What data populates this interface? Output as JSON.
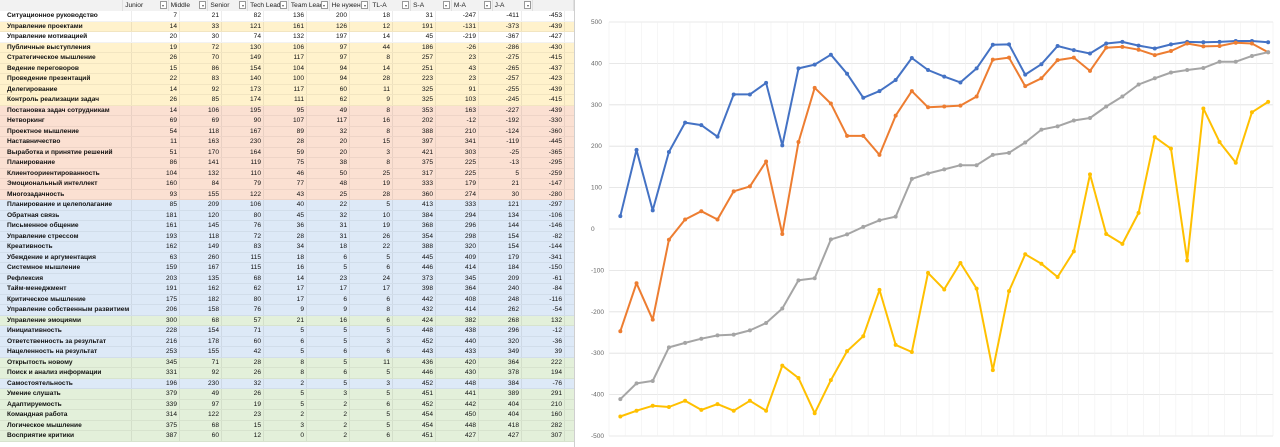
{
  "columns": [
    "",
    "Junior",
    "Middle",
    "Senior",
    "Tech Lead",
    "Team Lead",
    "Не нужен",
    "TL-A",
    "S-A",
    "M-A",
    "J-A",
    ""
  ],
  "colors": {
    "yellow": "#fff2cc",
    "orange": "#fbe0d2",
    "blue": "#dde9f7",
    "green": "#e3f0da",
    "white": "#ffffff"
  },
  "rows": [
    {
      "name": "Ситуационное руководство",
      "band": "white",
      "v": [
        "7",
        "21",
        "82",
        "136",
        "200",
        "18",
        "31",
        "-247",
        "-411",
        "-453"
      ]
    },
    {
      "name": "Управление проектами",
      "band": "yellow",
      "v": [
        "14",
        "33",
        "121",
        "161",
        "126",
        "12",
        "191",
        "-131",
        "-373",
        "-439"
      ]
    },
    {
      "name": "Управление мотивацией",
      "band": "white",
      "v": [
        "20",
        "30",
        "74",
        "132",
        "197",
        "14",
        "45",
        "-219",
        "-367",
        "-427"
      ]
    },
    {
      "name": "Публичные выступления",
      "band": "yellow",
      "v": [
        "19",
        "72",
        "130",
        "106",
        "97",
        "44",
        "186",
        "-26",
        "-286",
        "-430"
      ]
    },
    {
      "name": "Стратегическое мышление",
      "band": "yellow",
      "v": [
        "26",
        "70",
        "149",
        "117",
        "97",
        "8",
        "257",
        "23",
        "-275",
        "-415"
      ]
    },
    {
      "name": "Ведение переговоров",
      "band": "yellow",
      "v": [
        "15",
        "86",
        "154",
        "104",
        "94",
        "14",
        "251",
        "43",
        "-265",
        "-437"
      ]
    },
    {
      "name": "Проведение презентаций",
      "band": "yellow",
      "v": [
        "22",
        "83",
        "140",
        "100",
        "94",
        "28",
        "223",
        "23",
        "-257",
        "-423"
      ]
    },
    {
      "name": "Делегирование",
      "band": "yellow",
      "v": [
        "14",
        "92",
        "173",
        "117",
        "60",
        "11",
        "325",
        "91",
        "-255",
        "-439"
      ]
    },
    {
      "name": "Контроль реализации задач",
      "band": "yellow",
      "v": [
        "26",
        "85",
        "174",
        "111",
        "62",
        "9",
        "325",
        "103",
        "-245",
        "-415"
      ]
    },
    {
      "name": "Постановка задач сотрудникам",
      "band": "orange",
      "v": [
        "14",
        "106",
        "195",
        "95",
        "49",
        "8",
        "353",
        "163",
        "-227",
        "-439"
      ]
    },
    {
      "name": "Нетворкинг",
      "band": "orange",
      "v": [
        "69",
        "69",
        "90",
        "107",
        "117",
        "16",
        "202",
        "-12",
        "-192",
        "-330"
      ]
    },
    {
      "name": "Проектное мышление",
      "band": "orange",
      "v": [
        "54",
        "118",
        "167",
        "89",
        "32",
        "8",
        "388",
        "210",
        "-124",
        "-360"
      ]
    },
    {
      "name": "Наставничество",
      "band": "orange",
      "v": [
        "11",
        "163",
        "230",
        "28",
        "20",
        "15",
        "397",
        "341",
        "-119",
        "-445"
      ]
    },
    {
      "name": "Выработка и принятие решений",
      "band": "orange",
      "v": [
        "51",
        "170",
        "164",
        "59",
        "20",
        "3",
        "421",
        "303",
        "-25",
        "-365"
      ]
    },
    {
      "name": "Планирование",
      "band": "orange",
      "v": [
        "86",
        "141",
        "119",
        "75",
        "38",
        "8",
        "375",
        "225",
        "-13",
        "-295"
      ]
    },
    {
      "name": "Клиентоориентированность",
      "band": "orange",
      "v": [
        "104",
        "132",
        "110",
        "46",
        "50",
        "25",
        "317",
        "225",
        "5",
        "-259"
      ]
    },
    {
      "name": "Эмоциональный интеллект",
      "band": "orange",
      "v": [
        "160",
        "84",
        "79",
        "77",
        "48",
        "19",
        "333",
        "179",
        "21",
        "-147"
      ]
    },
    {
      "name": "Многозадачность",
      "band": "orange",
      "v": [
        "93",
        "155",
        "122",
        "43",
        "25",
        "28",
        "360",
        "274",
        "30",
        "-280"
      ]
    },
    {
      "name": "Планирование и целеполагание",
      "band": "blue",
      "v": [
        "85",
        "209",
        "106",
        "40",
        "22",
        "5",
        "413",
        "333",
        "121",
        "-297"
      ]
    },
    {
      "name": "Обратная связь",
      "band": "blue",
      "v": [
        "181",
        "120",
        "80",
        "45",
        "32",
        "10",
        "384",
        "294",
        "134",
        "-106"
      ]
    },
    {
      "name": "Письменное общение",
      "band": "blue",
      "v": [
        "161",
        "145",
        "76",
        "36",
        "31",
        "19",
        "368",
        "296",
        "144",
        "-146"
      ]
    },
    {
      "name": "Управление стрессом",
      "band": "blue",
      "v": [
        "193",
        "118",
        "72",
        "28",
        "31",
        "26",
        "354",
        "298",
        "154",
        "-82"
      ]
    },
    {
      "name": "Креативность",
      "band": "blue",
      "v": [
        "162",
        "149",
        "83",
        "34",
        "18",
        "22",
        "388",
        "320",
        "154",
        "-144"
      ]
    },
    {
      "name": "Убеждение и аргументация",
      "band": "blue",
      "v": [
        "63",
        "260",
        "115",
        "18",
        "6",
        "5",
        "445",
        "409",
        "179",
        "-341"
      ]
    },
    {
      "name": "Системное мышление",
      "band": "blue",
      "v": [
        "159",
        "167",
        "115",
        "16",
        "5",
        "6",
        "446",
        "414",
        "184",
        "-150"
      ]
    },
    {
      "name": "Рефлексия",
      "band": "blue",
      "v": [
        "203",
        "135",
        "68",
        "14",
        "23",
        "24",
        "373",
        "345",
        "209",
        "-61"
      ]
    },
    {
      "name": "Тайм-менеджмент",
      "band": "blue",
      "v": [
        "191",
        "162",
        "62",
        "17",
        "17",
        "17",
        "398",
        "364",
        "240",
        "-84"
      ]
    },
    {
      "name": "Критическое мышление",
      "band": "blue",
      "v": [
        "175",
        "182",
        "80",
        "17",
        "6",
        "6",
        "442",
        "408",
        "248",
        "-116"
      ]
    },
    {
      "name": "Управление собственным развитием",
      "band": "blue",
      "v": [
        "206",
        "158",
        "76",
        "9",
        "9",
        "8",
        "432",
        "414",
        "262",
        "-54"
      ]
    },
    {
      "name": "Управление эмоциями",
      "band": "green",
      "v": [
        "300",
        "68",
        "57",
        "21",
        "16",
        "6",
        "424",
        "382",
        "268",
        "132"
      ]
    },
    {
      "name": "Инициативность",
      "band": "blue",
      "v": [
        "228",
        "154",
        "71",
        "5",
        "5",
        "5",
        "448",
        "438",
        "296",
        "-12"
      ]
    },
    {
      "name": "Ответственность за результат",
      "band": "blue",
      "v": [
        "216",
        "178",
        "60",
        "6",
        "5",
        "3",
        "452",
        "440",
        "320",
        "-36"
      ]
    },
    {
      "name": "Нацеленность на результат",
      "band": "blue",
      "v": [
        "253",
        "155",
        "42",
        "5",
        "6",
        "6",
        "443",
        "433",
        "349",
        "39"
      ]
    },
    {
      "name": "Открытость новому",
      "band": "green",
      "v": [
        "345",
        "71",
        "28",
        "8",
        "5",
        "11",
        "436",
        "420",
        "364",
        "222"
      ]
    },
    {
      "name": "Поиск и анализ информации",
      "band": "green",
      "v": [
        "331",
        "92",
        "26",
        "8",
        "6",
        "5",
        "446",
        "430",
        "378",
        "194"
      ]
    },
    {
      "name": "Самостоятельность",
      "band": "blue",
      "v": [
        "196",
        "230",
        "32",
        "2",
        "5",
        "3",
        "452",
        "448",
        "384",
        "-76"
      ]
    },
    {
      "name": "Умение слушать",
      "band": "green",
      "v": [
        "379",
        "49",
        "26",
        "5",
        "3",
        "5",
        "451",
        "441",
        "389",
        "291"
      ]
    },
    {
      "name": "Адаптируемость",
      "band": "green",
      "v": [
        "339",
        "97",
        "19",
        "5",
        "2",
        "6",
        "452",
        "442",
        "404",
        "210"
      ]
    },
    {
      "name": "Командная работа",
      "band": "green",
      "v": [
        "314",
        "122",
        "23",
        "2",
        "2",
        "5",
        "454",
        "450",
        "404",
        "160"
      ]
    },
    {
      "name": "Логическое мышление",
      "band": "green",
      "v": [
        "375",
        "68",
        "15",
        "3",
        "2",
        "5",
        "454",
        "448",
        "418",
        "282"
      ]
    },
    {
      "name": "Восприятие критики",
      "band": "green",
      "v": [
        "387",
        "60",
        "12",
        "0",
        "2",
        "6",
        "451",
        "427",
        "427",
        "307"
      ]
    }
  ],
  "chart_data": {
    "type": "line",
    "ylim": [
      -500,
      500
    ],
    "yticks": [
      "500",
      "400",
      "300",
      "200",
      "100",
      "0",
      "-100",
      "-200",
      "-300",
      "-400",
      "-500"
    ],
    "grid": true,
    "series": [
      {
        "color": "#4472c4",
        "values": [
          31,
          191,
          45,
          186,
          257,
          251,
          223,
          325,
          325,
          353,
          202,
          388,
          397,
          421,
          375,
          317,
          333,
          360,
          413,
          384,
          368,
          354,
          388,
          445,
          446,
          373,
          398,
          442,
          432,
          424,
          448,
          452,
          443,
          436,
          446,
          452,
          451,
          452,
          454,
          454,
          451
        ]
      },
      {
        "color": "#ed7d31",
        "values": [
          -247,
          -131,
          -219,
          -26,
          23,
          43,
          23,
          91,
          103,
          163,
          -12,
          210,
          341,
          303,
          225,
          225,
          179,
          274,
          333,
          294,
          296,
          298,
          320,
          409,
          414,
          345,
          364,
          408,
          414,
          382,
          438,
          440,
          433,
          420,
          430,
          448,
          441,
          442,
          450,
          448,
          427
        ]
      },
      {
        "color": "#a5a5a5",
        "values": [
          -411,
          -373,
          -367,
          -286,
          -275,
          -265,
          -257,
          -255,
          -245,
          -227,
          -192,
          -124,
          -119,
          -25,
          -13,
          5,
          21,
          30,
          121,
          134,
          144,
          154,
          154,
          179,
          184,
          209,
          240,
          248,
          262,
          268,
          296,
          320,
          349,
          364,
          378,
          384,
          389,
          404,
          404,
          418,
          427
        ]
      },
      {
        "color": "#ffc000",
        "values": [
          -453,
          -439,
          -427,
          -430,
          -415,
          -437,
          -423,
          -439,
          -415,
          -439,
          -330,
          -360,
          -445,
          -365,
          -295,
          -259,
          -147,
          -280,
          -297,
          -106,
          -146,
          -82,
          -144,
          -341,
          -150,
          -61,
          -84,
          -116,
          -54,
          132,
          -12,
          -36,
          39,
          222,
          194,
          -76,
          291,
          210,
          160,
          282,
          307
        ]
      }
    ]
  }
}
